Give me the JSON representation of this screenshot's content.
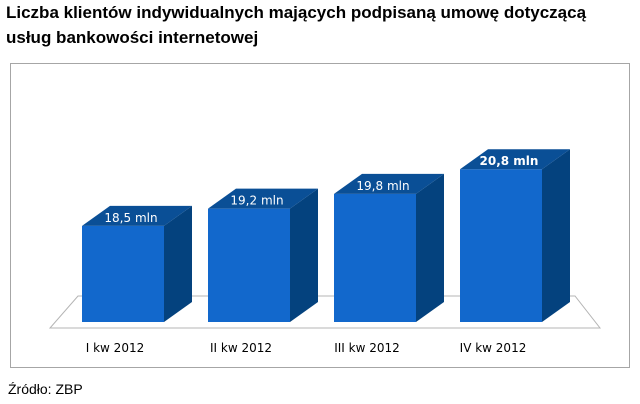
{
  "title": {
    "line1": "Liczba klientów indywidualnych mających podpisaną umowę dotyczącą",
    "line2": "usług bankowości internetowej"
  },
  "source": "Źródło: ZBP",
  "colors": {
    "front": "#1268cc",
    "side": "#04427e",
    "top": "#0a4f96",
    "floor": "#ffffff",
    "floor_edge": "#b4b4b4",
    "label": "#ffffff",
    "axis_text": "#000000"
  },
  "chart_data": {
    "type": "bar",
    "style": "3d-column",
    "categories": [
      "I kw 2012",
      "II kw 2012",
      "III kw 2012",
      "IV kw 2012"
    ],
    "values": [
      18.5,
      19.2,
      19.8,
      20.8
    ],
    "data_labels": [
      "18,5 mln",
      "19,2 mln",
      "19,8 mln",
      "20,8 mln"
    ],
    "bold_labels": [
      false,
      false,
      false,
      true
    ],
    "unit": "mln",
    "ylim": [
      0,
      21.5
    ],
    "grid": false,
    "legend": "none",
    "xlabel": "",
    "ylabel": ""
  }
}
